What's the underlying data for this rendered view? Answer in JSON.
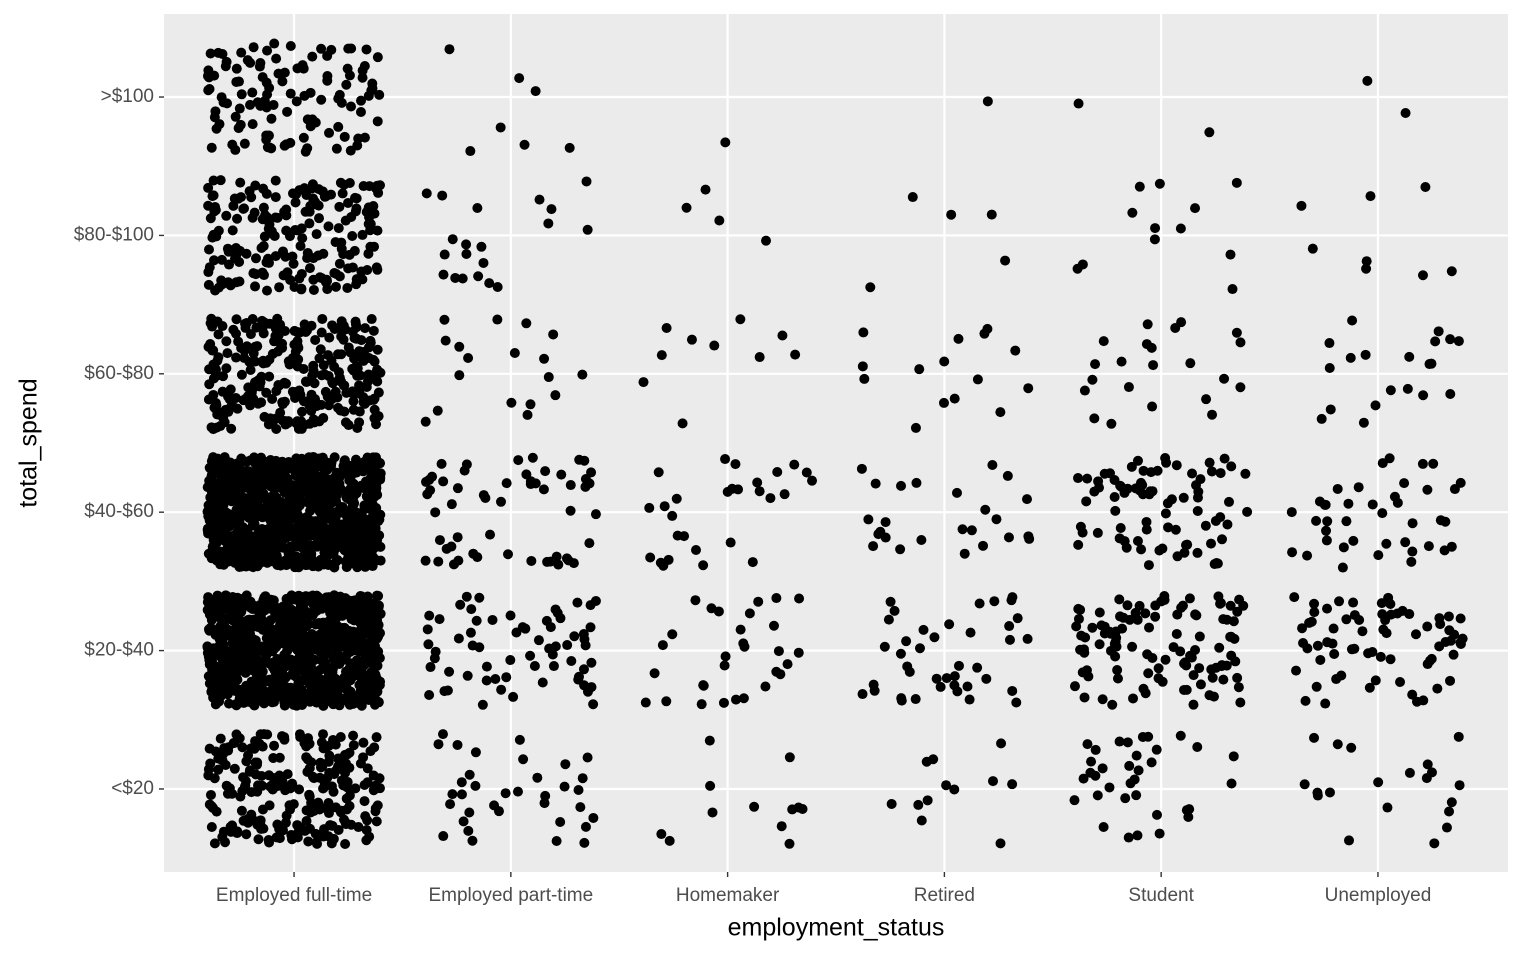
{
  "chart_data": {
    "type": "jitter",
    "x_label": "employment_status",
    "y_label": "total_spend",
    "categories": [
      "Employed full-time",
      "Employed part-time",
      "Homemaker",
      "Retired",
      "Student",
      "Unemployed"
    ],
    "y_categories": [
      "<$20",
      "$20-$40",
      "$40-$60",
      "$60-$80",
      "$80-$100",
      ">$100"
    ],
    "counts": [
      [
        250,
        1000,
        1000,
        300,
        200,
        120
      ],
      [
        35,
        65,
        55,
        18,
        20,
        7
      ],
      [
        12,
        30,
        28,
        10,
        4,
        1
      ],
      [
        12,
        40,
        25,
        15,
        5,
        1
      ],
      [
        35,
        110,
        80,
        22,
        12,
        2
      ],
      [
        20,
        70,
        40,
        20,
        8,
        2
      ]
    ],
    "color": "#000000",
    "grid": true
  }
}
